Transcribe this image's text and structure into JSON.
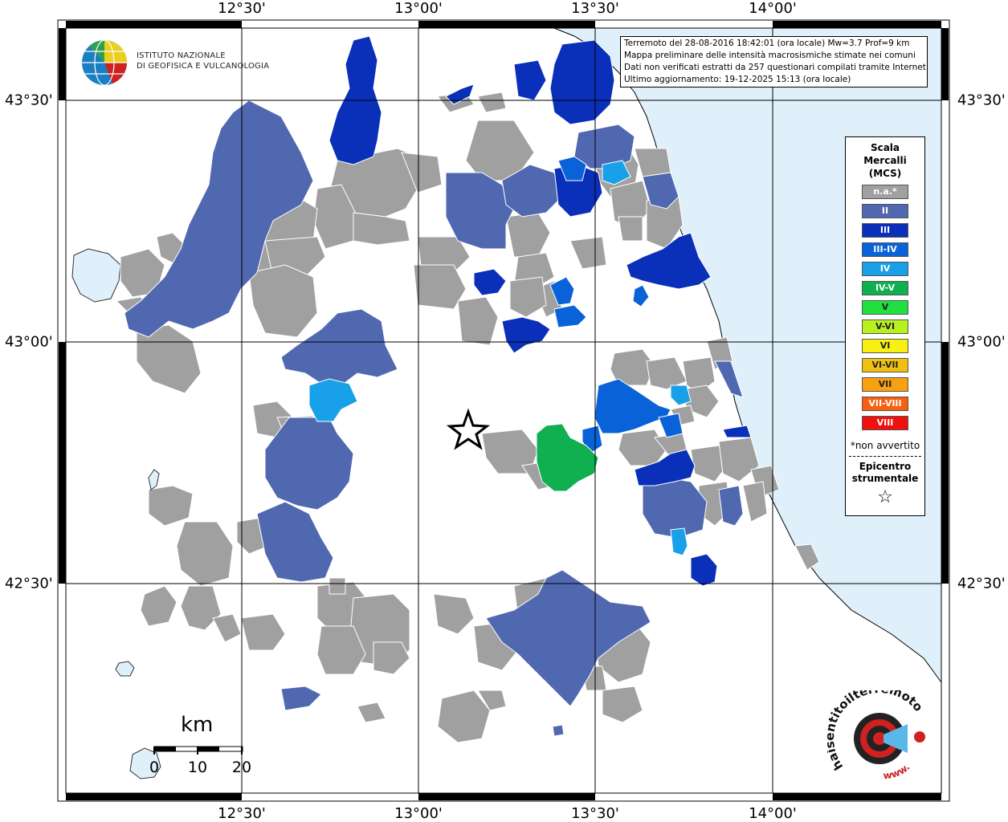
{
  "map": {
    "lon_labels": [
      "12°30'",
      "13°00'",
      "13°30'",
      "14°00'"
    ],
    "lat_labels": [
      "43°30'",
      "43°00'",
      "42°30'"
    ],
    "sea_color": "#dff0fb",
    "land_color": "#ffffff"
  },
  "logo": {
    "line1": "ISTITUTO NAZIONALE",
    "line2": "DI GEOFISICA E VULCANOLOGIA"
  },
  "info": {
    "line1": "Terremoto del 28-08-2016 18:42:01 (ora locale) Mw=3.7 Prof=9 km",
    "line2": "Mappa preliminare delle intensità macrosismiche stimate nei comuni",
    "line3": "Dati non verificati estratti da 257 questionari compilati tramite Internet.",
    "line4": "Ultimo aggiornamento: 19-12-2025 15:13 (ora locale)"
  },
  "legend": {
    "title1": "Scala",
    "title2": "Mercalli",
    "title3": "(MCS)",
    "items": [
      {
        "label": "n.a.*",
        "color": "#a0a0a0"
      },
      {
        "label": "II",
        "color": "#5068b0"
      },
      {
        "label": "III",
        "color": "#0a2fb8"
      },
      {
        "label": "III-IV",
        "color": "#0a62d8"
      },
      {
        "label": "IV",
        "color": "#18a0e8"
      },
      {
        "label": "IV-V",
        "color": "#10b050"
      },
      {
        "label": "V",
        "color": "#20e040"
      },
      {
        "label": "V-VI",
        "color": "#b8f020"
      },
      {
        "label": "VI",
        "color": "#f8f010"
      },
      {
        "label": "VI-VII",
        "color": "#f0c010"
      },
      {
        "label": "VII",
        "color": "#f8a010"
      },
      {
        "label": "VII-VIII",
        "color": "#f86010"
      },
      {
        "label": "VIII",
        "color": "#f01010"
      }
    ],
    "note": "*non avvertito",
    "epi1": "Epicentro",
    "epi2": "strumentale",
    "epi_symbol": "☆"
  },
  "scale": {
    "title": "km",
    "ticks": [
      "0",
      "10",
      "20"
    ]
  },
  "hs_logo": {
    "text": "haisentitoilterremoto.it",
    "www": "www."
  }
}
